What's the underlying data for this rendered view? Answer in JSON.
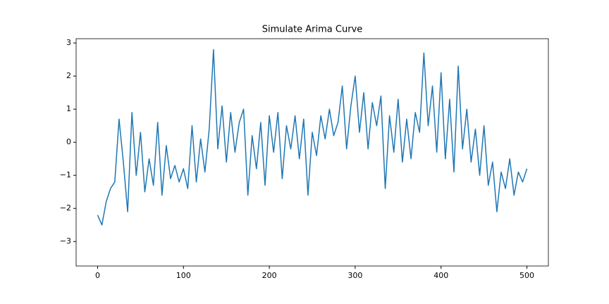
{
  "chart_data": {
    "type": "line",
    "title": "Simulate Arima Curve",
    "x": [
      0,
      5,
      10,
      15,
      20,
      25,
      30,
      35,
      40,
      45,
      50,
      55,
      60,
      65,
      70,
      75,
      80,
      85,
      90,
      95,
      100,
      105,
      110,
      115,
      120,
      125,
      130,
      135,
      140,
      145,
      150,
      155,
      160,
      165,
      170,
      175,
      180,
      185,
      190,
      195,
      200,
      205,
      210,
      215,
      220,
      225,
      230,
      235,
      240,
      245,
      250,
      255,
      260,
      265,
      270,
      275,
      280,
      285,
      290,
      295,
      300,
      305,
      310,
      315,
      320,
      325,
      330,
      335,
      340,
      345,
      350,
      355,
      360,
      365,
      370,
      375,
      380,
      385,
      390,
      395,
      400,
      405,
      410,
      415,
      420,
      425,
      430,
      435,
      440,
      445,
      450,
      455,
      460,
      465,
      470,
      475,
      480,
      485,
      490,
      495,
      500
    ],
    "series": [
      {
        "color": "#1f77b4",
        "values": [
          -2.2,
          -2.5,
          -1.8,
          -1.4,
          -1.2,
          0.7,
          -0.6,
          -2.1,
          0.9,
          -1.0,
          0.3,
          -1.5,
          -0.5,
          -1.3,
          0.6,
          -1.6,
          -0.1,
          -1.1,
          -0.7,
          -1.2,
          -0.8,
          -1.4,
          0.5,
          -1.2,
          0.1,
          -0.9,
          0.4,
          2.8,
          -0.2,
          1.1,
          -0.6,
          0.9,
          -0.3,
          0.6,
          1.0,
          -1.6,
          0.2,
          -0.8,
          0.6,
          -1.3,
          0.8,
          -0.3,
          0.9,
          -1.1,
          0.5,
          -0.2,
          0.8,
          -0.5,
          0.7,
          -1.6,
          0.3,
          -0.4,
          0.8,
          0.1,
          1.0,
          0.2,
          0.6,
          1.7,
          -0.2,
          1.1,
          2.0,
          0.3,
          1.5,
          -0.2,
          1.2,
          0.5,
          1.4,
          -1.4,
          0.8,
          -0.3,
          1.3,
          -0.6,
          0.7,
          -0.5,
          0.9,
          0.3,
          2.7,
          0.5,
          1.7,
          -0.3,
          2.1,
          -0.5,
          1.3,
          -0.9,
          2.3,
          -0.2,
          1.0,
          -0.6,
          0.4,
          -1.0,
          0.5,
          -1.3,
          -0.6,
          -2.1,
          -0.9,
          -1.4,
          -0.5,
          -1.6,
          -0.9,
          -1.2,
          -0.8
        ]
      }
    ],
    "xlim": [
      -25,
      525
    ],
    "ylim": [
      -3.74,
      3.13
    ],
    "xticks": [
      0,
      100,
      200,
      300,
      400,
      500
    ],
    "yticks": [
      {
        "value": -3,
        "label": "−3"
      },
      {
        "value": -2,
        "label": "−2"
      },
      {
        "value": -1,
        "label": "−1"
      },
      0,
      1,
      2,
      3
    ]
  }
}
